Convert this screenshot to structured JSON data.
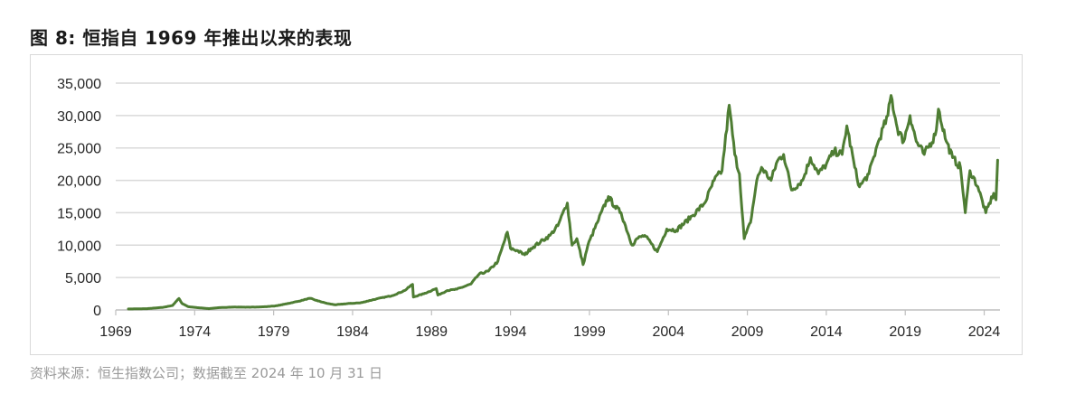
{
  "title": "图 8:  恒指自 1969 年推出以来的表现",
  "source": "资料来源：恒生指数公司；数据截至 2024 年 10 月 31 日",
  "colors": {
    "line": "#4e7d33",
    "grid": "#d9d9d9",
    "axis": "#bfbfbf",
    "text": "#262626"
  },
  "chart_data": {
    "type": "line",
    "title": "",
    "xlabel": "",
    "ylabel": "",
    "xlim": [
      1969,
      2025
    ],
    "ylim": [
      0,
      35000
    ],
    "grid": true,
    "legend": "none",
    "y_ticks": [
      "0",
      "5,000",
      "10,000",
      "15,000",
      "20,000",
      "25,000",
      "30,000",
      "35,000"
    ],
    "x_ticks": [
      "1969",
      "1974",
      "1979",
      "1984",
      "1989",
      "1994",
      "1999",
      "2004",
      "2009",
      "2014",
      "2019",
      "2024"
    ],
    "series": [
      {
        "x": [
          1969.8,
          1971.0,
          1972.0,
          1972.6,
          1973.0,
          1973.2,
          1973.6,
          1974.0,
          1974.9,
          1975.5,
          1976.5,
          1977.5,
          1978.5,
          1979.2,
          1979.9,
          1980.5,
          1981.3,
          1981.8,
          1982.4,
          1982.9,
          1983.8,
          1984.5,
          1985.5,
          1986.5,
          1987.3,
          1987.8,
          1987.85,
          1988.5,
          1989.3,
          1989.4,
          1990.0,
          1990.6,
          1991.5,
          1992.0,
          1992.6,
          1993.2,
          1993.8,
          1994.0,
          1994.4,
          1994.9,
          1995.3,
          1995.9,
          1996.5,
          1997.0,
          1997.6,
          1997.9,
          1998.2,
          1998.6,
          1998.9,
          1999.5,
          2000.2,
          2000.6,
          2001.0,
          2001.7,
          2002.0,
          2002.5,
          2003.3,
          2003.9,
          2004.5,
          2005.5,
          2006.3,
          2006.9,
          2007.4,
          2007.85,
          2008.2,
          2008.5,
          2008.8,
          2009.2,
          2009.6,
          2009.9,
          2010.5,
          2010.9,
          2011.3,
          2011.8,
          2012.5,
          2013.0,
          2013.5,
          2014.0,
          2014.5,
          2015.0,
          2015.3,
          2015.8,
          2016.1,
          2016.7,
          2017.3,
          2017.9,
          2018.1,
          2018.5,
          2018.9,
          2019.3,
          2019.7,
          2020.2,
          2020.9,
          2021.1,
          2021.6,
          2022.0,
          2022.5,
          2022.8,
          2023.1,
          2023.6,
          2024.1,
          2024.6,
          2024.75,
          2024.85
        ],
        "values": [
          150,
          200,
          400,
          700,
          1775,
          1000,
          500,
          400,
          200,
          350,
          450,
          420,
          500,
          650,
          1000,
          1300,
          1800,
          1400,
          1000,
          800,
          1000,
          1100,
          1700,
          2200,
          3000,
          3950,
          2000,
          2500,
          3300,
          2300,
          3000,
          3200,
          4000,
          5500,
          6000,
          7500,
          12000,
          9500,
          9200,
          8500,
          9500,
          10500,
          11500,
          13000,
          16500,
          10000,
          11000,
          7000,
          10000,
          13500,
          17500,
          16000,
          15000,
          10000,
          11000,
          11500,
          9000,
          12500,
          12300,
          14500,
          16500,
          20000,
          21500,
          31600,
          24000,
          21000,
          11000,
          13500,
          20000,
          22000,
          20000,
          23000,
          24000,
          18500,
          20000,
          23500,
          21000,
          22500,
          24500,
          24000,
          28400,
          22000,
          19000,
          21000,
          26000,
          30000,
          33100,
          28000,
          26000,
          30000,
          26000,
          24000,
          27000,
          31000,
          26000,
          23500,
          22000,
          15000,
          21500,
          19000,
          15000,
          18000,
          17000,
          23100
        ]
      }
    ]
  }
}
